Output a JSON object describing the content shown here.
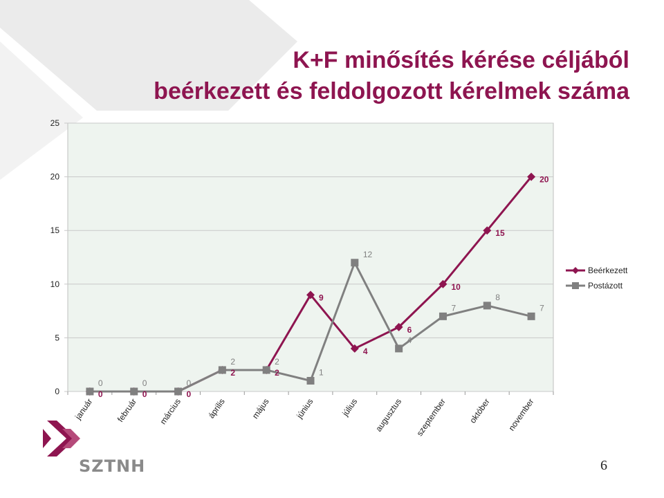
{
  "slide": {
    "title_line1": "K+F minősítés kérése céljából",
    "title_line2": "beérkezett és feldolgozott kérelmek száma",
    "logo_text": "SZTNH",
    "page_number": "6"
  },
  "colors": {
    "title": "#8e1550",
    "series_received": "#8e1550",
    "series_sent": "#808080",
    "plot_background": "#eef4ef",
    "background_shape": "#e9e9e9"
  },
  "chart_data": {
    "type": "line",
    "title": "",
    "xlabel": "",
    "ylabel": "",
    "ylim": [
      0,
      25
    ],
    "yticks": [
      0,
      5,
      10,
      15,
      20,
      25
    ],
    "grid": true,
    "legend_position": "right",
    "categories": [
      "január",
      "február",
      "március",
      "április",
      "május",
      "június",
      "július",
      "augusztus",
      "szeptember",
      "október",
      "november"
    ],
    "series": [
      {
        "name": "Beérkezett",
        "marker": "diamond",
        "values": [
          0,
          0,
          0,
          2,
          2,
          9,
          4,
          6,
          10,
          15,
          20
        ]
      },
      {
        "name": "Postázott",
        "marker": "square",
        "values": [
          0,
          0,
          0,
          2,
          2,
          1,
          12,
          4,
          7,
          8,
          7
        ]
      }
    ]
  }
}
